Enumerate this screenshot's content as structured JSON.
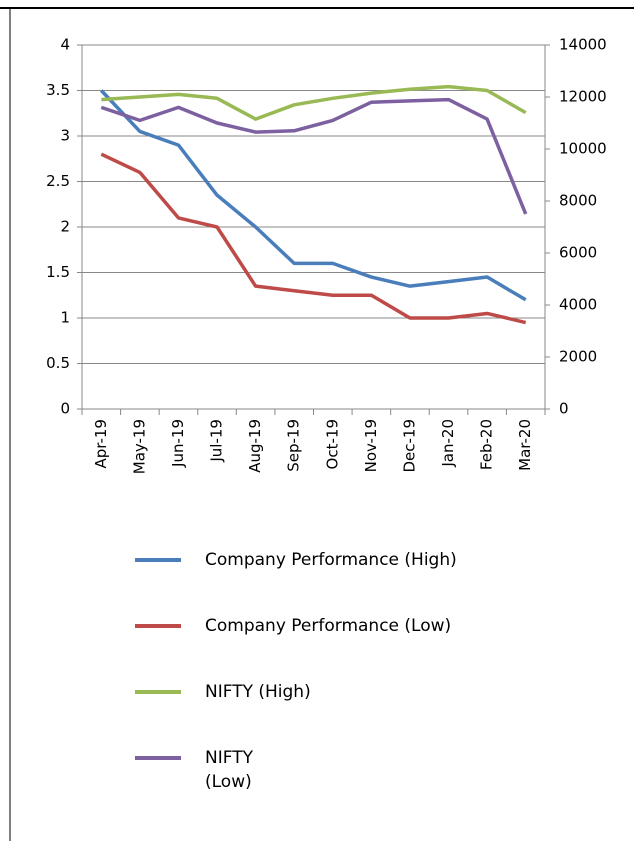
{
  "chart_data": {
    "type": "line",
    "categories": [
      "Apr-19",
      "May-19",
      "Jun-19",
      "Jul-19",
      "Aug-19",
      "Sep-19",
      "Oct-19",
      "Nov-19",
      "Dec-19",
      "Jan-20",
      "Feb-20",
      "Mar-20"
    ],
    "series": [
      {
        "name": "Company Performance (High)",
        "color": "#4a7ebb",
        "values": [
          3.5,
          3.05,
          2.9,
          2.35,
          2.0,
          1.6,
          1.6,
          1.45,
          1.35,
          1.4,
          1.45,
          1.2
        ]
      },
      {
        "name": "Company Performance (Low)",
        "color": "#be4b48",
        "values": [
          2.8,
          2.6,
          2.1,
          2.0,
          1.35,
          1.3,
          1.25,
          1.25,
          1.0,
          1.0,
          1.05,
          0.95
        ]
      },
      {
        "name": "NIFTY (High)",
        "color": "#98b954",
        "axis": "y2",
        "values": [
          11900,
          12000,
          12100,
          11950,
          11150,
          11700,
          11950,
          12150,
          12300,
          12400,
          12250,
          11400
        ]
      },
      {
        "name": "NIFTY (Low)",
        "color": "#7d60a0",
        "axis": "y2",
        "values": [
          11600,
          11100,
          11600,
          11000,
          10650,
          10700,
          11100,
          11800,
          11850,
          11900,
          11150,
          7500
        ]
      }
    ],
    "ylim": [
      0,
      4
    ],
    "yticks": [
      0,
      0.5,
      1,
      1.5,
      2,
      2.5,
      3,
      3.5,
      4
    ],
    "y2lim": [
      0,
      14000
    ],
    "y2ticks": [
      0,
      2000,
      4000,
      6000,
      8000,
      10000,
      12000,
      14000
    ],
    "grid": true
  }
}
